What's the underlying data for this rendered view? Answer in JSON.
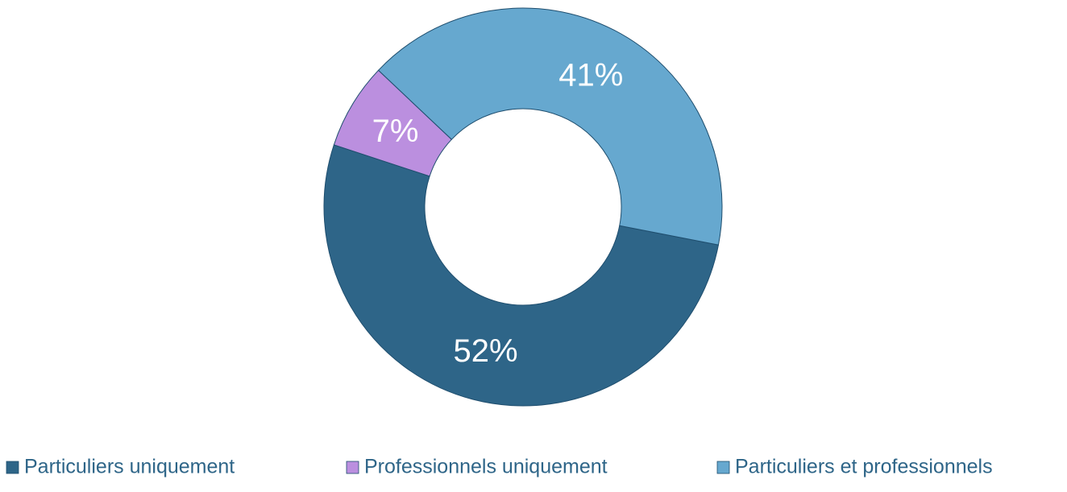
{
  "chart_data": {
    "type": "donut",
    "categories": [
      "Particuliers uniquement",
      "Professionnels uniquement",
      "Particuliers et professionnels"
    ],
    "values": [
      52,
      7,
      41
    ],
    "value_labels": [
      "52%",
      "7%",
      "41%"
    ],
    "colors": [
      "#2e6588",
      "#bb8fdf",
      "#66a8cf"
    ],
    "legend": "bottom"
  }
}
